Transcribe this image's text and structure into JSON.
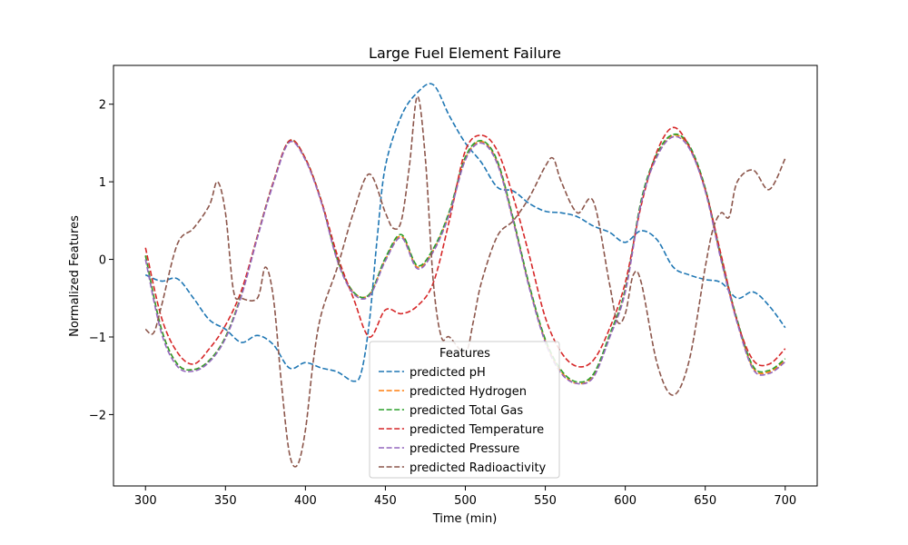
{
  "chart_data": {
    "type": "line",
    "title": "Large Fuel Element Failure",
    "xlabel": "Time (min)",
    "ylabel": "Normalized Features",
    "xlim": [
      280,
      720
    ],
    "ylim": [
      -2.92,
      2.5
    ],
    "xticks": [
      300,
      350,
      400,
      450,
      500,
      550,
      600,
      650,
      700
    ],
    "yticks": [
      -2,
      -1,
      0,
      1,
      2
    ],
    "xtick_labels": [
      "300",
      "350",
      "400",
      "450",
      "500",
      "550",
      "600",
      "650",
      "700"
    ],
    "ytick_labels": [
      "−2",
      "−1",
      "0",
      "1",
      "2"
    ],
    "grid": false,
    "line_style": "dashed",
    "legend": {
      "title": "Features",
      "placement": "lower-center"
    },
    "series": [
      {
        "name": "predicted pH",
        "color": "#1f77b4",
        "x": [
          300,
          310,
          320,
          330,
          340,
          350,
          360,
          370,
          380,
          390,
          400,
          410,
          420,
          430,
          435,
          440,
          445,
          450,
          460,
          470,
          480,
          490,
          500,
          510,
          520,
          530,
          540,
          550,
          560,
          570,
          580,
          590,
          600,
          610,
          620,
          630,
          640,
          650,
          660,
          670,
          680,
          690,
          700
        ],
        "y": [
          -0.2,
          -0.28,
          -0.25,
          -0.5,
          -0.78,
          -0.9,
          -1.07,
          -0.98,
          -1.1,
          -1.4,
          -1.33,
          -1.4,
          -1.45,
          -1.57,
          -1.45,
          -0.8,
          0.3,
          1.2,
          1.85,
          2.15,
          2.25,
          1.85,
          1.5,
          1.25,
          0.93,
          0.88,
          0.72,
          0.62,
          0.6,
          0.55,
          0.43,
          0.35,
          0.22,
          0.37,
          0.25,
          -0.1,
          -0.2,
          -0.26,
          -0.3,
          -0.5,
          -0.42,
          -0.6,
          -0.88
        ]
      },
      {
        "name": "predicted Hydrogen",
        "color": "#ff7f0e",
        "x": [
          300,
          310,
          320,
          330,
          340,
          350,
          360,
          370,
          380,
          390,
          400,
          410,
          420,
          430,
          440,
          450,
          460,
          470,
          480,
          490,
          500,
          510,
          520,
          530,
          540,
          550,
          560,
          570,
          580,
          590,
          600,
          610,
          620,
          630,
          640,
          650,
          660,
          670,
          680,
          690,
          700
        ],
        "y": [
          0.05,
          -0.9,
          -1.35,
          -1.42,
          -1.3,
          -1.0,
          -0.45,
          0.3,
          1.0,
          1.52,
          1.3,
          0.75,
          0.0,
          -0.42,
          -0.45,
          0.0,
          0.3,
          -0.1,
          0.12,
          0.6,
          1.3,
          1.52,
          1.25,
          0.5,
          -0.35,
          -1.05,
          -1.45,
          -1.6,
          -1.5,
          -1.0,
          -0.4,
          0.75,
          1.35,
          1.6,
          1.45,
          0.9,
          0.0,
          -0.8,
          -1.4,
          -1.45,
          -1.3
        ]
      },
      {
        "name": "predicted Total Gas",
        "color": "#2ca02c",
        "x": [
          300,
          310,
          320,
          330,
          340,
          350,
          360,
          370,
          380,
          390,
          400,
          410,
          420,
          430,
          440,
          450,
          460,
          470,
          480,
          490,
          500,
          510,
          520,
          530,
          540,
          550,
          560,
          570,
          580,
          590,
          600,
          610,
          620,
          630,
          640,
          650,
          660,
          670,
          680,
          690,
          700
        ],
        "y": [
          0.05,
          -0.9,
          -1.35,
          -1.42,
          -1.3,
          -1.0,
          -0.45,
          0.3,
          1.0,
          1.53,
          1.3,
          0.75,
          0.0,
          -0.42,
          -0.45,
          0.02,
          0.32,
          -0.08,
          0.14,
          0.62,
          1.32,
          1.53,
          1.27,
          0.52,
          -0.33,
          -1.03,
          -1.43,
          -1.58,
          -1.48,
          -0.98,
          -0.38,
          0.77,
          1.37,
          1.61,
          1.47,
          0.92,
          0.02,
          -0.78,
          -1.38,
          -1.43,
          -1.28
        ]
      },
      {
        "name": "predicted Temperature",
        "color": "#d62728",
        "x": [
          300,
          310,
          320,
          330,
          340,
          350,
          360,
          370,
          380,
          390,
          400,
          410,
          420,
          430,
          440,
          450,
          460,
          470,
          480,
          490,
          500,
          510,
          520,
          530,
          540,
          550,
          560,
          570,
          580,
          590,
          600,
          610,
          620,
          630,
          640,
          650,
          660,
          670,
          680,
          690,
          700
        ],
        "y": [
          0.15,
          -0.75,
          -1.2,
          -1.35,
          -1.15,
          -0.85,
          -0.4,
          0.3,
          1.0,
          1.53,
          1.3,
          0.75,
          0.05,
          -0.5,
          -1.0,
          -0.65,
          -0.7,
          -0.6,
          -0.3,
          0.5,
          1.4,
          1.6,
          1.4,
          0.8,
          0.05,
          -0.75,
          -1.2,
          -1.38,
          -1.3,
          -0.9,
          -0.3,
          0.7,
          1.4,
          1.7,
          1.45,
          0.9,
          0.05,
          -0.8,
          -1.3,
          -1.35,
          -1.15
        ]
      },
      {
        "name": "predicted Pressure",
        "color": "#9467bd",
        "x": [
          300,
          310,
          320,
          330,
          340,
          350,
          360,
          370,
          380,
          390,
          400,
          410,
          420,
          430,
          440,
          450,
          460,
          470,
          480,
          490,
          500,
          510,
          520,
          530,
          540,
          550,
          560,
          570,
          580,
          590,
          600,
          610,
          620,
          630,
          640,
          650,
          660,
          670,
          680,
          690,
          700
        ],
        "y": [
          0.0,
          -0.95,
          -1.38,
          -1.44,
          -1.32,
          -1.02,
          -0.47,
          0.28,
          0.98,
          1.51,
          1.28,
          0.73,
          -0.02,
          -0.44,
          -0.47,
          -0.02,
          0.28,
          -0.12,
          0.1,
          0.58,
          1.28,
          1.5,
          1.23,
          0.48,
          -0.37,
          -1.07,
          -1.47,
          -1.6,
          -1.52,
          -1.02,
          -0.42,
          0.73,
          1.33,
          1.58,
          1.43,
          0.88,
          -0.02,
          -0.82,
          -1.42,
          -1.47,
          -1.32
        ]
      },
      {
        "name": "predicted Radioactivity",
        "color": "#8c564b",
        "x": [
          300,
          305,
          310,
          320,
          330,
          340,
          345,
          350,
          355,
          360,
          370,
          375,
          380,
          385,
          390,
          395,
          400,
          405,
          410,
          420,
          430,
          440,
          450,
          455,
          460,
          465,
          470,
          475,
          480,
          485,
          490,
          500,
          505,
          510,
          520,
          530,
          540,
          550,
          555,
          560,
          570,
          580,
          590,
          595,
          600,
          605,
          610,
          620,
          630,
          640,
          650,
          655,
          660,
          665,
          670,
          680,
          690,
          700
        ],
        "y": [
          -0.9,
          -0.95,
          -0.6,
          0.2,
          0.4,
          0.7,
          1.0,
          0.6,
          -0.4,
          -0.5,
          -0.5,
          -0.1,
          -0.5,
          -1.6,
          -2.5,
          -2.65,
          -2.2,
          -1.3,
          -0.7,
          -0.1,
          0.6,
          1.1,
          0.6,
          0.4,
          0.5,
          1.2,
          2.1,
          1.3,
          -0.3,
          -1.0,
          -1.0,
          -1.2,
          -0.8,
          -0.3,
          0.3,
          0.5,
          0.8,
          1.2,
          1.3,
          1.0,
          0.6,
          0.75,
          -0.3,
          -0.8,
          -0.7,
          -0.2,
          -0.3,
          -1.35,
          -1.75,
          -1.3,
          -0.1,
          0.4,
          0.6,
          0.55,
          1.0,
          1.15,
          0.9,
          1.3
        ]
      }
    ]
  }
}
